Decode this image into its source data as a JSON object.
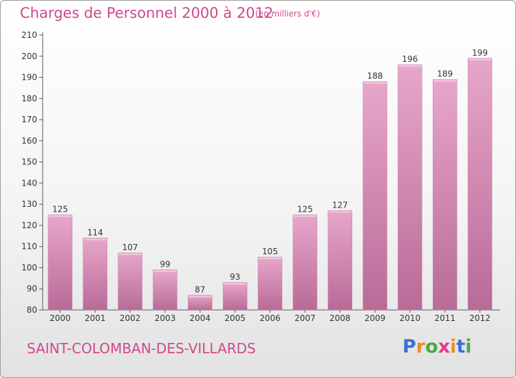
{
  "chart_data": {
    "type": "bar",
    "title": "Charges de Personnel 2000 à 2012",
    "subtitle": "(en milliers d'€)",
    "categories": [
      "2000",
      "2001",
      "2002",
      "2003",
      "2004",
      "2005",
      "2006",
      "2007",
      "2008",
      "2009",
      "2010",
      "2011",
      "2012"
    ],
    "values": [
      125,
      114,
      107,
      99,
      87,
      93,
      105,
      125,
      127,
      188,
      196,
      189,
      199
    ],
    "ylim": [
      80,
      210
    ],
    "yticks": [
      80,
      90,
      100,
      110,
      120,
      130,
      140,
      150,
      160,
      170,
      180,
      190,
      200,
      210
    ],
    "xlabel": "",
    "ylabel": "",
    "grid": false,
    "bar_color": "#d98ab5"
  },
  "footer": {
    "commune": "SAINT-COLOMBAN-DES-VILLARDS",
    "logo_letters": [
      "P",
      "r",
      "o",
      "x",
      "i",
      "t",
      "i"
    ],
    "logo_colors": [
      "#3a6fd8",
      "#e8912a",
      "#4aa84a",
      "#e03a8a",
      "#e8912a",
      "#3a6fd8",
      "#4aa84a"
    ]
  },
  "colors": {
    "accent": "#d0488a",
    "bar": "#d98ab5"
  }
}
